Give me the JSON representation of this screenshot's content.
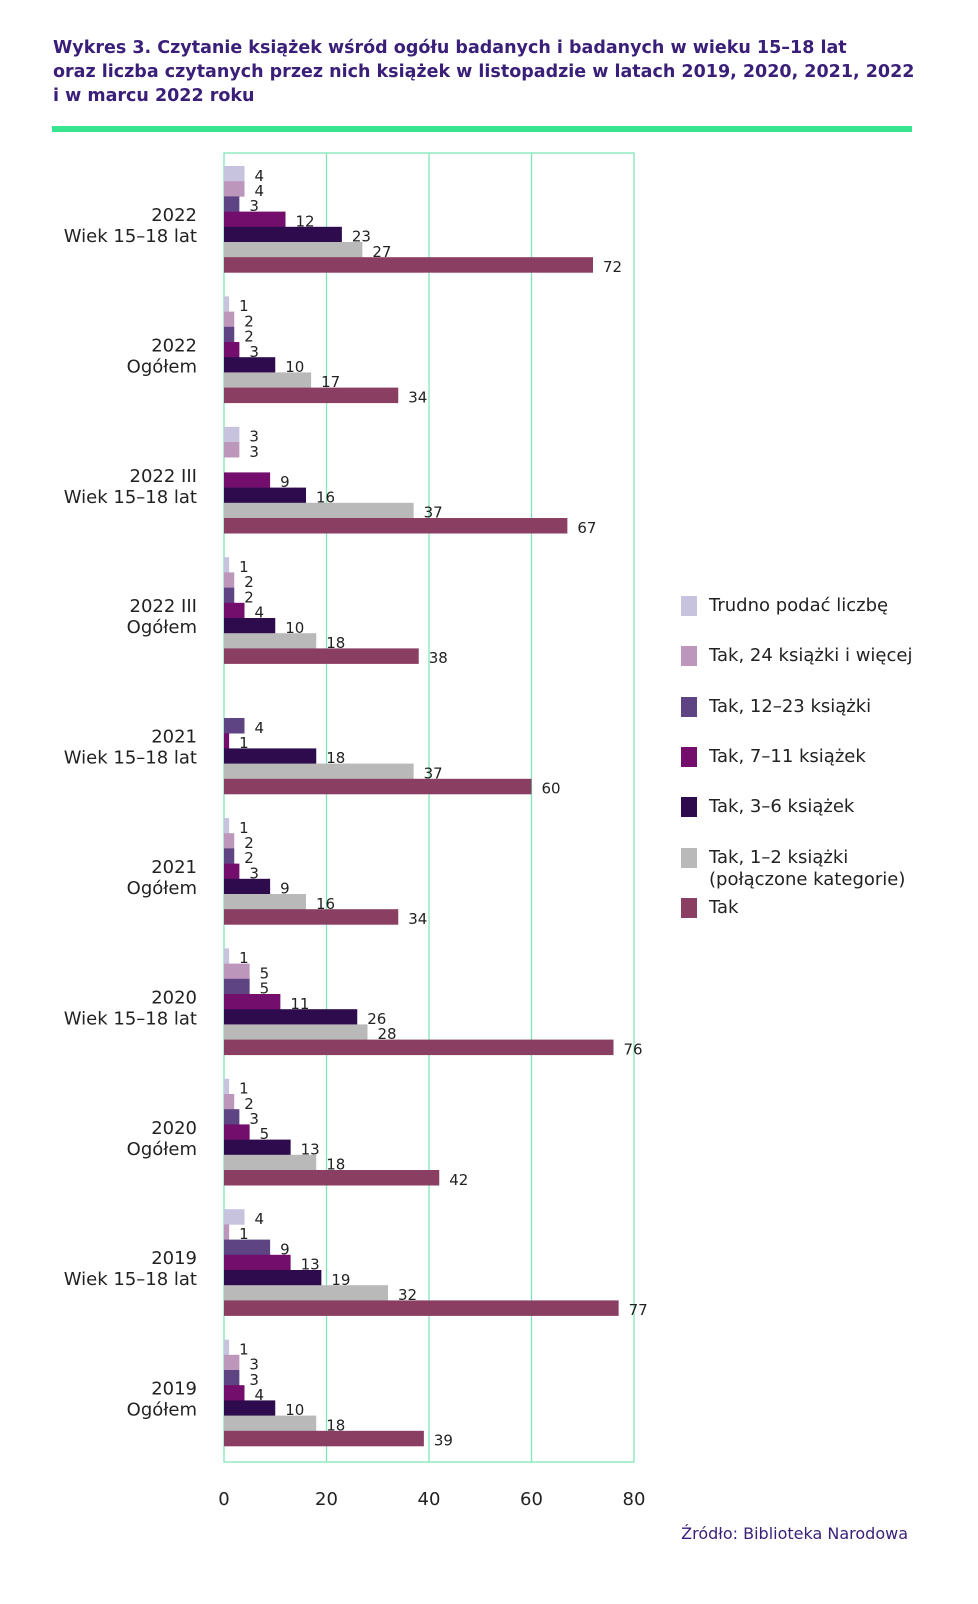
{
  "title_lines": [
    "Wykres 3. Czytanie książek wśród ogółu badanych i badanych w wieku 15–18 lat",
    "oraz liczba czytanych przez nich książek w listopadzie w latach 2019, 2020, 2021, 2022",
    "i w marcu 2022 roku"
  ],
  "source": "Źródło: Biblioteka Narodowa",
  "colors": {
    "accent_rule": "#39e491",
    "grid": "#7fe6b8",
    "title": "#3a1f78"
  },
  "chart_data": {
    "type": "bar",
    "orientation": "horizontal",
    "title": "Wykres 3. Czytanie książek wśród ogółu badanych i badanych w wieku 15–18 lat oraz liczba czytanych przez nich książek w listopadzie w latach 2019, 2020, 2021, 2022 i w marcu 2022 roku",
    "xlabel": "",
    "ylabel": "",
    "xlim": [
      0,
      80
    ],
    "xticks": [
      "0",
      "20",
      "40",
      "60",
      "80"
    ],
    "grid": true,
    "legend_position": "right",
    "categories": [
      [
        "2022",
        "Wiek 15–18 lat"
      ],
      [
        "2022",
        "Ogółem"
      ],
      [
        "2022 III",
        "Wiek 15–18 lat"
      ],
      [
        "2022 III",
        "Ogółem"
      ],
      [
        "2021",
        "Wiek 15–18 lat"
      ],
      [
        "2021",
        "Ogółem"
      ],
      [
        "2020",
        "Wiek 15–18 lat"
      ],
      [
        "2020",
        "Ogółem"
      ],
      [
        "2019",
        "Wiek 15–18 lat"
      ],
      [
        "2019",
        "Ogółem"
      ]
    ],
    "series": [
      {
        "name": "Trudno podać liczbę",
        "color": "#c7c2dd",
        "values": [
          4,
          1,
          3,
          1,
          null,
          1,
          1,
          1,
          4,
          1
        ]
      },
      {
        "name": "Tak, 24 książki i więcej",
        "color": "#bd97bb",
        "values": [
          4,
          2,
          3,
          2,
          null,
          2,
          5,
          2,
          1,
          3
        ]
      },
      {
        "name": "Tak, 12–23 książki",
        "color": "#5e4482",
        "values": [
          3,
          2,
          null,
          2,
          4,
          2,
          5,
          3,
          9,
          3
        ]
      },
      {
        "name": "Tak, 7–11 książek",
        "color": "#740e6d",
        "values": [
          12,
          3,
          9,
          4,
          1,
          3,
          11,
          5,
          13,
          4
        ]
      },
      {
        "name": "Tak, 3–6 książek",
        "color": "#2d0b4d",
        "values": [
          23,
          10,
          16,
          10,
          18,
          9,
          26,
          13,
          19,
          10
        ]
      },
      {
        "name": "Tak, 1–2 książki\n(połączone kategorie)",
        "color": "#b9b9b9",
        "values": [
          27,
          17,
          37,
          18,
          37,
          16,
          28,
          18,
          32,
          18
        ]
      },
      {
        "name": "Tak",
        "color": "#8a3e62",
        "values": [
          72,
          34,
          67,
          38,
          60,
          34,
          76,
          42,
          77,
          39
        ]
      }
    ]
  }
}
